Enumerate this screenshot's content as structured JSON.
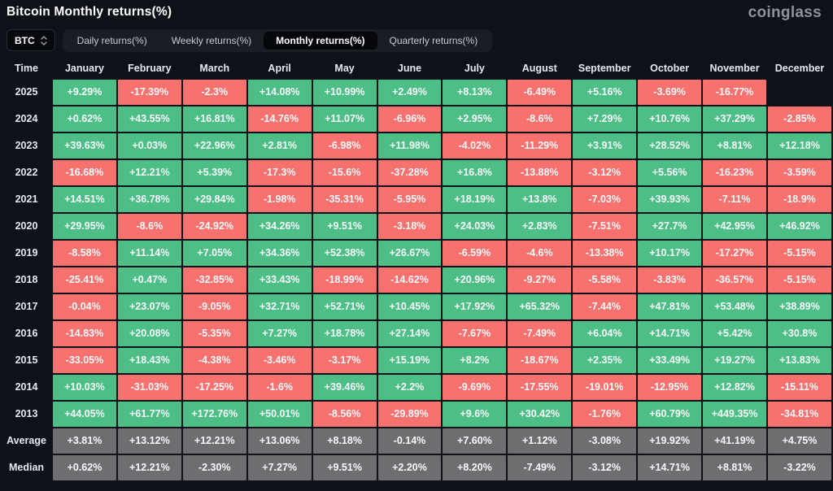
{
  "header": {
    "title": "Bitcoin Monthly returns(%)",
    "logo": "coinglass"
  },
  "toolbar": {
    "symbol": "BTC",
    "sort_icon": "up-down-chevrons",
    "tabs": [
      {
        "label": "Daily returns(%)",
        "active": false
      },
      {
        "label": "Weekly returns(%)",
        "active": false
      },
      {
        "label": "Monthly returns(%)",
        "active": true
      },
      {
        "label": "Quarterly returns(%)",
        "active": false
      }
    ]
  },
  "colors": {
    "positive": "#4DBE85",
    "negative": "#F7716E",
    "summary": "#6E6E71",
    "background": "#0E1117"
  },
  "chart_data": {
    "type": "heatmap",
    "title": "Bitcoin Monthly returns(%)",
    "time_header": "Time",
    "months": [
      "January",
      "February",
      "March",
      "April",
      "May",
      "June",
      "July",
      "August",
      "September",
      "October",
      "November",
      "December"
    ],
    "rows": [
      {
        "label": "2025",
        "values": [
          "+9.29%",
          "-17.39%",
          "-2.3%",
          "+14.08%",
          "+10.99%",
          "+2.49%",
          "+8.13%",
          "-6.49%",
          "+5.16%",
          "-3.69%",
          "-16.77%",
          ""
        ]
      },
      {
        "label": "2024",
        "values": [
          "+0.62%",
          "+43.55%",
          "+16.81%",
          "-14.76%",
          "+11.07%",
          "-6.96%",
          "+2.95%",
          "-8.6%",
          "+7.29%",
          "+10.76%",
          "+37.29%",
          "-2.85%"
        ]
      },
      {
        "label": "2023",
        "values": [
          "+39.63%",
          "+0.03%",
          "+22.96%",
          "+2.81%",
          "-6.98%",
          "+11.98%",
          "-4.02%",
          "-11.29%",
          "+3.91%",
          "+28.52%",
          "+8.81%",
          "+12.18%"
        ]
      },
      {
        "label": "2022",
        "values": [
          "-16.68%",
          "+12.21%",
          "+5.39%",
          "-17.3%",
          "-15.6%",
          "-37.28%",
          "+16.8%",
          "-13.88%",
          "-3.12%",
          "+5.56%",
          "-16.23%",
          "-3.59%"
        ]
      },
      {
        "label": "2021",
        "values": [
          "+14.51%",
          "+36.78%",
          "+29.84%",
          "-1.98%",
          "-35.31%",
          "-5.95%",
          "+18.19%",
          "+13.8%",
          "-7.03%",
          "+39.93%",
          "-7.11%",
          "-18.9%"
        ]
      },
      {
        "label": "2020",
        "values": [
          "+29.95%",
          "-8.6%",
          "-24.92%",
          "+34.26%",
          "+9.51%",
          "-3.18%",
          "+24.03%",
          "+2.83%",
          "-7.51%",
          "+27.7%",
          "+42.95%",
          "+46.92%"
        ]
      },
      {
        "label": "2019",
        "values": [
          "-8.58%",
          "+11.14%",
          "+7.05%",
          "+34.36%",
          "+52.38%",
          "+26.67%",
          "-6.59%",
          "-4.6%",
          "-13.38%",
          "+10.17%",
          "-17.27%",
          "-5.15%"
        ]
      },
      {
        "label": "2018",
        "values": [
          "-25.41%",
          "+0.47%",
          "-32.85%",
          "+33.43%",
          "-18.99%",
          "-14.62%",
          "+20.96%",
          "-9.27%",
          "-5.58%",
          "-3.83%",
          "-36.57%",
          "-5.15%"
        ]
      },
      {
        "label": "2017",
        "values": [
          "-0.04%",
          "+23.07%",
          "-9.05%",
          "+32.71%",
          "+52.71%",
          "+10.45%",
          "+17.92%",
          "+65.32%",
          "-7.44%",
          "+47.81%",
          "+53.48%",
          "+38.89%"
        ]
      },
      {
        "label": "2016",
        "values": [
          "-14.83%",
          "+20.08%",
          "-5.35%",
          "+7.27%",
          "+18.78%",
          "+27.14%",
          "-7.67%",
          "-7.49%",
          "+6.04%",
          "+14.71%",
          "+5.42%",
          "+30.8%"
        ]
      },
      {
        "label": "2015",
        "values": [
          "-33.05%",
          "+18.43%",
          "-4.38%",
          "-3.46%",
          "-3.17%",
          "+15.19%",
          "+8.2%",
          "-18.67%",
          "+2.35%",
          "+33.49%",
          "+19.27%",
          "+13.83%"
        ]
      },
      {
        "label": "2014",
        "values": [
          "+10.03%",
          "-31.03%",
          "-17.25%",
          "-1.6%",
          "+39.46%",
          "+2.2%",
          "-9.69%",
          "-17.55%",
          "-19.01%",
          "-12.95%",
          "+12.82%",
          "-15.11%"
        ]
      },
      {
        "label": "2013",
        "values": [
          "+44.05%",
          "+61.77%",
          "+172.76%",
          "+50.01%",
          "-8.56%",
          "-29.89%",
          "+9.6%",
          "+30.42%",
          "-1.76%",
          "+60.79%",
          "+449.35%",
          "-34.81%"
        ]
      }
    ],
    "summary_rows": [
      {
        "label": "Average",
        "values": [
          "+3.81%",
          "+13.12%",
          "+12.21%",
          "+13.06%",
          "+8.18%",
          "-0.14%",
          "+7.60%",
          "+1.12%",
          "-3.08%",
          "+19.92%",
          "+41.19%",
          "+4.75%"
        ]
      },
      {
        "label": "Median",
        "values": [
          "+0.62%",
          "+12.21%",
          "-2.30%",
          "+7.27%",
          "+9.51%",
          "+2.20%",
          "+8.20%",
          "-7.49%",
          "-3.12%",
          "+14.71%",
          "+8.81%",
          "-3.22%"
        ]
      }
    ]
  }
}
